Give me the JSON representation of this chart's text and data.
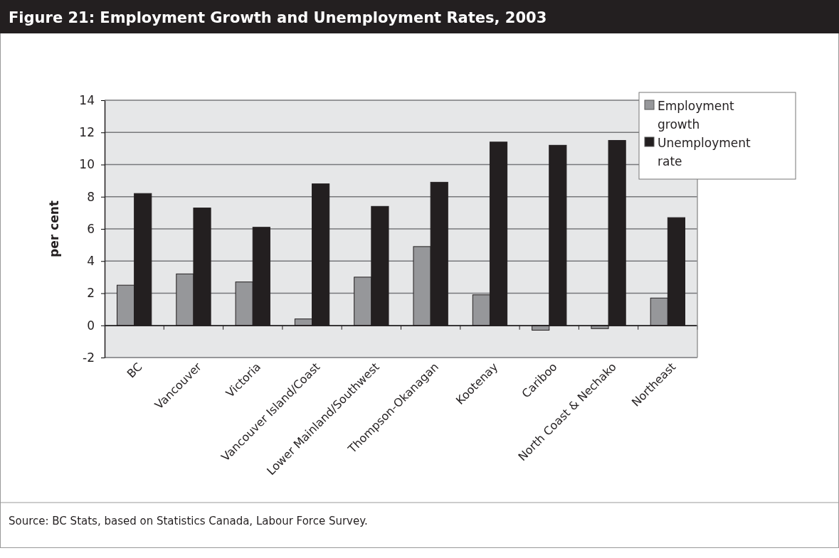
{
  "chart_data": {
    "type": "bar",
    "title": "Figure 21: Employment Growth and Unemployment Rates, 2003",
    "ylabel": "per cent",
    "categories": [
      "BC",
      "Vancouver",
      "Victoria",
      "Vancouver Island/Coast",
      "Lower Mainland/Southwest",
      "Thompson-Okanagan",
      "Kootenay",
      "Cariboo",
      "North Coast & Nechako",
      "Northeast"
    ],
    "series": [
      {
        "name": "Employment growth",
        "color": "#96979a",
        "values": [
          2.5,
          3.2,
          2.7,
          0.4,
          3.0,
          4.9,
          1.9,
          -0.3,
          -0.2,
          1.7
        ]
      },
      {
        "name": "Unemployment rate",
        "color": "#231f20",
        "values": [
          8.2,
          7.3,
          6.1,
          8.8,
          7.4,
          8.9,
          11.4,
          11.2,
          11.5,
          6.7
        ]
      }
    ],
    "ylim": [
      -2,
      14
    ],
    "yticks": [
      -2,
      0,
      2,
      4,
      6,
      8,
      10,
      12,
      14
    ],
    "grid": "y",
    "legend": "top right",
    "annotations": [
      "Source: BC Stats, based on Statistics Canada, Labour Force Survey."
    ]
  }
}
